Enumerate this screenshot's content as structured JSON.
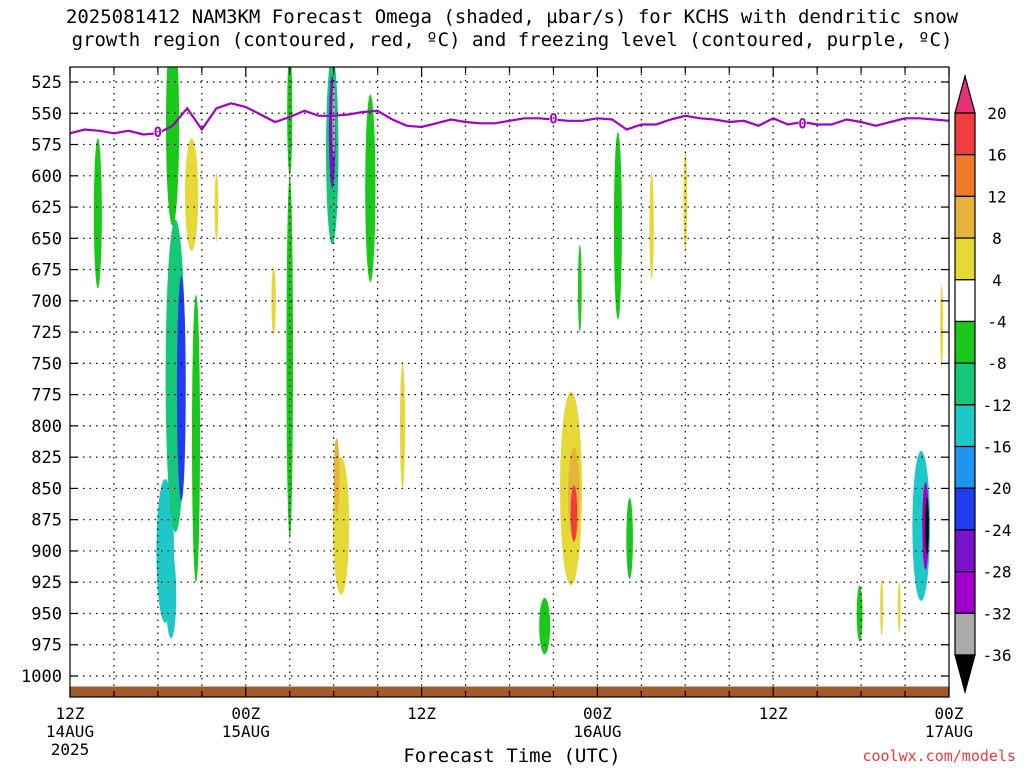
{
  "title_line1": "2025081412 NAM3KM Forecast Omega (shaded, µbar/s) for KCHS with dendritic snow",
  "title_line2": "growth region (contoured, red, ºC) and freezing level (contoured, purple, ºC)",
  "watermark": "coolwx.com/models",
  "chart_data": {
    "type": "heatmap",
    "title": "2025081412 NAM3KM Forecast Omega (shaded, µbar/s) for KCHS with dendritic snow growth region (contoured, red, ºC) and freezing level (contoured, purple, ºC)",
    "xlabel": "Forecast Time (UTC)",
    "ylabel": "",
    "y_ticks": [
      525,
      550,
      575,
      600,
      625,
      650,
      675,
      700,
      725,
      750,
      775,
      800,
      825,
      850,
      875,
      900,
      925,
      950,
      975,
      1000
    ],
    "y_range": [
      1010,
      520
    ],
    "x_range": [
      0,
      60
    ],
    "x_ticks": [
      {
        "h": 0,
        "lines": [
          "12Z",
          "14AUG",
          "2025"
        ]
      },
      {
        "h": 12,
        "lines": [
          "00Z",
          "15AUG"
        ]
      },
      {
        "h": 24,
        "lines": [
          "12Z"
        ]
      },
      {
        "h": 36,
        "lines": [
          "00Z",
          "16AUG"
        ]
      },
      {
        "h": 48,
        "lines": [
          "12Z"
        ]
      },
      {
        "h": 60,
        "lines": [
          "00Z",
          "17AUG"
        ]
      }
    ],
    "grid": true,
    "colorbar": {
      "labels": [
        "20",
        "16",
        "12",
        "8",
        "4",
        "-4",
        "-8",
        "-12",
        "-16",
        "-20",
        "-24",
        "-28",
        "-32",
        "-36"
      ],
      "bins": [
        {
          "range": [
            20,
            999
          ],
          "color": "#e8307a"
        },
        {
          "range": [
            16,
            20
          ],
          "color": "#f03c3c"
        },
        {
          "range": [
            12,
            16
          ],
          "color": "#f07a28"
        },
        {
          "range": [
            8,
            12
          ],
          "color": "#e6b43c"
        },
        {
          "range": [
            4,
            8
          ],
          "color": "#e6d837"
        },
        {
          "range": [
            -4,
            4
          ],
          "color": "#ffffff"
        },
        {
          "range": [
            -8,
            -4
          ],
          "color": "#19c819"
        },
        {
          "range": [
            -12,
            -8
          ],
          "color": "#14c878"
        },
        {
          "range": [
            -16,
            -12
          ],
          "color": "#1ec8c8"
        },
        {
          "range": [
            -20,
            -16
          ],
          "color": "#1e96f0"
        },
        {
          "range": [
            -24,
            -20
          ],
          "color": "#1e3cf0"
        },
        {
          "range": [
            -28,
            -24
          ],
          "color": "#7814c8"
        },
        {
          "range": [
            -32,
            -28
          ],
          "color": "#a000c8"
        },
        {
          "range": [
            -36,
            -32
          ],
          "color": "#aaaaaa"
        },
        {
          "range": [
            -999,
            -36
          ],
          "color": "#000000"
        }
      ]
    },
    "freezing_level": {
      "label": "0",
      "color": "#a000c8",
      "points": [
        [
          0,
          566
        ],
        [
          1,
          563
        ],
        [
          2,
          564
        ],
        [
          3,
          566
        ],
        [
          4,
          564
        ],
        [
          5,
          567
        ],
        [
          6,
          566
        ],
        [
          7,
          560
        ],
        [
          8,
          546
        ],
        [
          9,
          563
        ],
        [
          10,
          546
        ],
        [
          11,
          542
        ],
        [
          12,
          545
        ],
        [
          13,
          551
        ],
        [
          14,
          557
        ],
        [
          15,
          553
        ],
        [
          16,
          548
        ],
        [
          17,
          552
        ],
        [
          18,
          552
        ],
        [
          19,
          551
        ],
        [
          20,
          549
        ],
        [
          21,
          548
        ],
        [
          22,
          555
        ],
        [
          23,
          560
        ],
        [
          24,
          561
        ],
        [
          25,
          558
        ],
        [
          26,
          555
        ],
        [
          27,
          557
        ],
        [
          28,
          558
        ],
        [
          29,
          558
        ],
        [
          30,
          556
        ],
        [
          31,
          554
        ],
        [
          32,
          554
        ],
        [
          33,
          555
        ],
        [
          34,
          556
        ],
        [
          35,
          556
        ],
        [
          36,
          554
        ],
        [
          37,
          555
        ],
        [
          38,
          563
        ],
        [
          39,
          559
        ],
        [
          40,
          559
        ],
        [
          41,
          555
        ],
        [
          42,
          552
        ],
        [
          43,
          554
        ],
        [
          44,
          555
        ],
        [
          45,
          557
        ],
        [
          46,
          556
        ],
        [
          47,
          560
        ],
        [
          48,
          554
        ],
        [
          49,
          559
        ],
        [
          50,
          557
        ],
        [
          51,
          559
        ],
        [
          52,
          559
        ],
        [
          53,
          555
        ],
        [
          54,
          557
        ],
        [
          55,
          560
        ],
        [
          56,
          557
        ],
        [
          57,
          554
        ],
        [
          58,
          554
        ],
        [
          59,
          555
        ],
        [
          60,
          556
        ]
      ],
      "label_positions": [
        [
          6,
          565
        ],
        [
          33,
          554
        ],
        [
          50,
          558
        ]
      ]
    },
    "surface": {
      "color": "#a05a2c",
      "pressure": 1010
    },
    "omega_features": [
      {
        "h": 1.9,
        "p": 630,
        "dh": 0.55,
        "dp": 120,
        "v": -6
      },
      {
        "h": 6.5,
        "p": 900,
        "dh": 1.2,
        "dp": 115,
        "v": -13
      },
      {
        "h": 7.2,
        "p": 760,
        "dh": 1.35,
        "dp": 250,
        "v": -11
      },
      {
        "h": 7.0,
        "p": 560,
        "dh": 0.9,
        "dp": 160,
        "v": -6
      },
      {
        "h": 7.6,
        "p": 770,
        "dh": 0.6,
        "dp": 180,
        "v": -21
      },
      {
        "h": 6.9,
        "p": 935,
        "dh": 0.7,
        "dp": 70,
        "v": -15
      },
      {
        "h": 8.6,
        "p": 810,
        "dh": 0.55,
        "dp": 230,
        "v": -6
      },
      {
        "h": 8.3,
        "p": 605,
        "dh": 0.5,
        "dp": 65,
        "v": 17
      },
      {
        "h": 8.3,
        "p": 615,
        "dh": 0.9,
        "dp": 90,
        "v": 6
      },
      {
        "h": 10.0,
        "p": 625,
        "dh": 0.25,
        "dp": 55,
        "v": 5
      },
      {
        "h": 13.9,
        "p": 700,
        "dh": 0.3,
        "dp": 55,
        "v": 5
      },
      {
        "h": 15.0,
        "p": 745,
        "dh": 0.45,
        "dp": 290,
        "v": -6
      },
      {
        "h": 15.0,
        "p": 550,
        "dh": 0.35,
        "dp": 100,
        "v": -6
      },
      {
        "h": 17.9,
        "p": 580,
        "dh": 0.85,
        "dp": 150,
        "v": -9
      },
      {
        "h": 17.9,
        "p": 565,
        "dh": 0.45,
        "dp": 90,
        "v": -26
      },
      {
        "h": 18.0,
        "p": 555,
        "dh": 0.2,
        "dp": 60,
        "v": -34
      },
      {
        "h": 18.5,
        "p": 880,
        "dh": 1.1,
        "dp": 110,
        "v": 6
      },
      {
        "h": 18.2,
        "p": 840,
        "dh": 0.4,
        "dp": 60,
        "v": 9
      },
      {
        "h": 20.5,
        "p": 610,
        "dh": 0.7,
        "dp": 150,
        "v": -6
      },
      {
        "h": 22.7,
        "p": 800,
        "dh": 0.35,
        "dp": 100,
        "v": 5
      },
      {
        "h": 34.2,
        "p": 850,
        "dh": 1.5,
        "dp": 155,
        "v": 5
      },
      {
        "h": 34.4,
        "p": 855,
        "dh": 0.8,
        "dp": 75,
        "v": 11
      },
      {
        "h": 34.4,
        "p": 870,
        "dh": 0.45,
        "dp": 45,
        "v": 19
      },
      {
        "h": 32.4,
        "p": 960,
        "dh": 0.75,
        "dp": 45,
        "v": -6
      },
      {
        "h": 34.8,
        "p": 690,
        "dh": 0.25,
        "dp": 70,
        "v": -6
      },
      {
        "h": 37.4,
        "p": 640,
        "dh": 0.55,
        "dp": 150,
        "v": -6
      },
      {
        "h": 38.2,
        "p": 890,
        "dh": 0.45,
        "dp": 65,
        "v": -6
      },
      {
        "h": 39.7,
        "p": 640,
        "dh": 0.3,
        "dp": 85,
        "v": 5
      },
      {
        "h": 42.0,
        "p": 620,
        "dh": 0.25,
        "dp": 80,
        "v": 5
      },
      {
        "h": 53.9,
        "p": 950,
        "dh": 0.4,
        "dp": 45,
        "v": -6
      },
      {
        "h": 55.4,
        "p": 945,
        "dh": 0.2,
        "dp": 45,
        "v": 5
      },
      {
        "h": 56.6,
        "p": 945,
        "dh": 0.2,
        "dp": 40,
        "v": 5
      },
      {
        "h": 58.1,
        "p": 880,
        "dh": 1.2,
        "dp": 120,
        "v": -14
      },
      {
        "h": 58.4,
        "p": 880,
        "dh": 0.45,
        "dp": 70,
        "v": -29
      },
      {
        "h": 58.5,
        "p": 880,
        "dh": 0.25,
        "dp": 45,
        "v": -40
      },
      {
        "h": 59.5,
        "p": 720,
        "dh": 0.2,
        "dp": 65,
        "v": 5
      }
    ]
  }
}
